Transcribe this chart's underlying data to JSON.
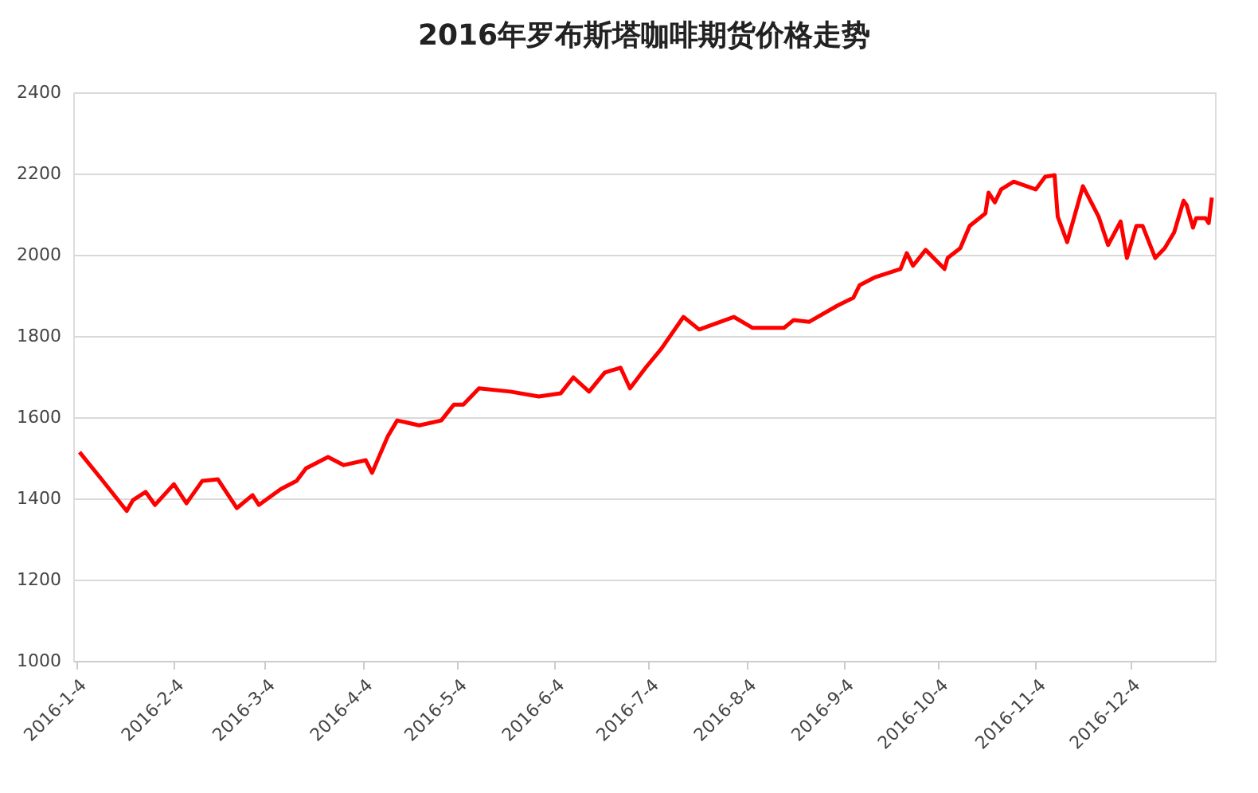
{
  "chart_data": {
    "type": "line",
    "title": "2016年罗布斯塔咖啡期货价格走势",
    "x": [
      "2016-01-05",
      "2016-01-12",
      "2016-01-20",
      "2016-01-22",
      "2016-01-26",
      "2016-01-29",
      "2016-02-04",
      "2016-02-08",
      "2016-02-13",
      "2016-02-18",
      "2016-02-24",
      "2016-02-29",
      "2016-03-02",
      "2016-03-09",
      "2016-03-14",
      "2016-03-17",
      "2016-03-24",
      "2016-03-29",
      "2016-04-05",
      "2016-04-07",
      "2016-04-12",
      "2016-04-15",
      "2016-04-22",
      "2016-04-29",
      "2016-05-03",
      "2016-05-06",
      "2016-05-11",
      "2016-05-21",
      "2016-05-30",
      "2016-06-06",
      "2016-06-10",
      "2016-06-15",
      "2016-06-20",
      "2016-06-25",
      "2016-06-28",
      "2016-07-03",
      "2016-07-08",
      "2016-07-15",
      "2016-07-20",
      "2016-07-31",
      "2016-08-06",
      "2016-08-16",
      "2016-08-19",
      "2016-08-24",
      "2016-09-02",
      "2016-09-07",
      "2016-09-09",
      "2016-09-14",
      "2016-09-22",
      "2016-09-24",
      "2016-09-26",
      "2016-09-30",
      "2016-10-06",
      "2016-10-07",
      "2016-10-11",
      "2016-10-14",
      "2016-10-19",
      "2016-10-20",
      "2016-10-22",
      "2016-10-24",
      "2016-10-28",
      "2016-11-04",
      "2016-11-07",
      "2016-11-10",
      "2016-11-11",
      "2016-11-14",
      "2016-11-19",
      "2016-11-24",
      "2016-11-27",
      "2016-12-01",
      "2016-12-03",
      "2016-12-06",
      "2016-12-08",
      "2016-12-12",
      "2016-12-15",
      "2016-12-18",
      "2016-12-21",
      "2016-12-22",
      "2016-12-24",
      "2016-12-25",
      "2016-12-28",
      "2016-12-29",
      "2016-12-30"
    ],
    "series": [
      {
        "color": "#ff0000",
        "values": [
          1514,
          1447,
          1369,
          1396,
          1416,
          1384,
          1435,
          1388,
          1443,
          1447,
          1376,
          1408,
          1384,
          1423,
          1443,
          1474,
          1502,
          1482,
          1494,
          1463,
          1553,
          1592,
          1580,
          1592,
          1631,
          1631,
          1671,
          1663,
          1651,
          1659,
          1698,
          1663,
          1710,
          1722,
          1671,
          1722,
          1769,
          1847,
          1816,
          1847,
          1820,
          1820,
          1839,
          1835,
          1875,
          1894,
          1925,
          1945,
          1965,
          2004,
          1973,
          2012,
          1965,
          1992,
          2016,
          2071,
          2102,
          2153,
          2129,
          2161,
          2180,
          2161,
          2192,
          2196,
          2094,
          2031,
          2169,
          2094,
          2024,
          2082,
          1992,
          2071,
          2071,
          1992,
          2016,
          2055,
          2133,
          2122,
          2067,
          2090,
          2090,
          2078,
          2141
        ]
      }
    ],
    "xlim": [
      "2016-01-03",
      "2016-12-31"
    ],
    "xticks": [
      {
        "value": "2016-01-04",
        "label": "2016-1-4"
      },
      {
        "value": "2016-02-04",
        "label": "2016-2-4"
      },
      {
        "value": "2016-03-04",
        "label": "2016-3-4"
      },
      {
        "value": "2016-04-04",
        "label": "2016-4-4"
      },
      {
        "value": "2016-05-04",
        "label": "2016-5-4"
      },
      {
        "value": "2016-06-04",
        "label": "2016-6-4"
      },
      {
        "value": "2016-07-04",
        "label": "2016-7-4"
      },
      {
        "value": "2016-08-04",
        "label": "2016-8-4"
      },
      {
        "value": "2016-09-04",
        "label": "2016-9-4"
      },
      {
        "value": "2016-10-04",
        "label": "2016-10-4"
      },
      {
        "value": "2016-11-04",
        "label": "2016-11-4"
      },
      {
        "value": "2016-12-04",
        "label": "2016-12-4"
      }
    ],
    "ylim": [
      1000,
      2400
    ],
    "yticks": [
      1000,
      1200,
      1400,
      1600,
      1800,
      2000,
      2200,
      2400
    ],
    "grid": "y",
    "legend": false,
    "marker": "none",
    "line_style": "solid"
  }
}
